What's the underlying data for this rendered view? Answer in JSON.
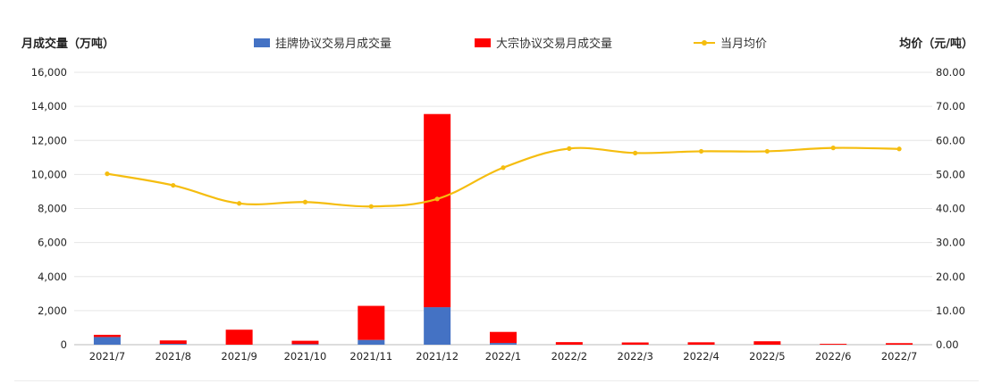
{
  "chart_data": {
    "type": "bar",
    "left_axis_title": "月成交量（万吨）",
    "right_axis_title": "均价（元/吨）",
    "categories": [
      "2021/7",
      "2021/8",
      "2021/9",
      "2021/10",
      "2021/11",
      "2021/12",
      "2022/1",
      "2022/2",
      "2022/3",
      "2022/4",
      "2022/5",
      "2022/6",
      "2022/7"
    ],
    "series": [
      {
        "name": "挂牌协议交易月成交量",
        "kind": "bar",
        "stack": "vol",
        "axis": "left",
        "color": "#4472c4",
        "values": [
          450,
          50,
          0,
          30,
          280,
          2200,
          100,
          0,
          0,
          0,
          0,
          0,
          0
        ]
      },
      {
        "name": "大宗协议交易月成交量",
        "kind": "bar",
        "stack": "vol",
        "axis": "left",
        "color": "#ff0000",
        "values": [
          130,
          200,
          880,
          200,
          2000,
          11350,
          650,
          150,
          130,
          140,
          200,
          50,
          90
        ]
      },
      {
        "name": "当月均价",
        "kind": "line",
        "axis": "right",
        "color": "#f5bd0f",
        "values": [
          50.2,
          46.8,
          41.5,
          41.9,
          40.6,
          42.8,
          52.0,
          57.6,
          56.3,
          56.8,
          56.8,
          57.8,
          57.5
        ]
      }
    ],
    "left_ylim": [
      0,
      16000
    ],
    "left_ticks": [
      "0",
      "2,000",
      "4,000",
      "6,000",
      "8,000",
      "10,000",
      "12,000",
      "14,000",
      "16,000"
    ],
    "right_ylim": [
      0,
      80
    ],
    "right_ticks": [
      "0.00",
      "10.00",
      "20.00",
      "30.00",
      "40.00",
      "50.00",
      "60.00",
      "70.00",
      "80.00"
    ],
    "grid": true,
    "legend_position": "top"
  }
}
